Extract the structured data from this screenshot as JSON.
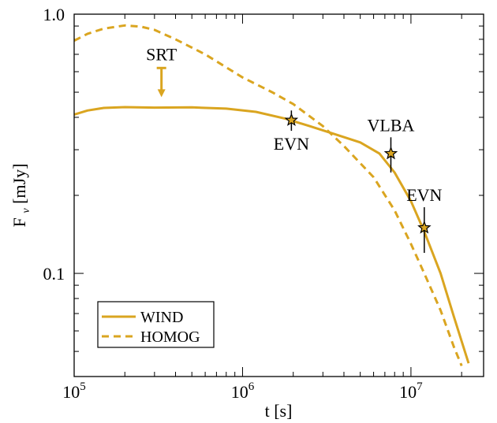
{
  "chart_data": {
    "type": "line",
    "xlabel": "t [s]",
    "ylabel": "Fν [mJy]",
    "xscale": "log",
    "yscale": "log",
    "xlim": [
      100000,
      27000000
    ],
    "ylim": [
      0.04,
      1.0
    ],
    "x_tick_labels": [
      {
        "base": "10",
        "exp": "5",
        "value": 100000
      },
      {
        "base": "10",
        "exp": "6",
        "value": 1000000
      },
      {
        "base": "10",
        "exp": "7",
        "value": 10000000
      }
    ],
    "y_tick_labels": [
      {
        "label": "1.0",
        "value": 1.0
      },
      {
        "label": "0.1",
        "value": 0.1
      }
    ],
    "grid": false,
    "legend_position": "bottom-left",
    "color": "#daa520",
    "series": [
      {
        "name": "WIND",
        "style": "solid",
        "x": [
          100000,
          120000,
          150000,
          200000,
          300000,
          500000,
          800000,
          1200000,
          1800000,
          2500000,
          3500000,
          5000000,
          6500000,
          8000000,
          10000000,
          12000000,
          15000000,
          18000000,
          22000000
        ],
        "y": [
          0.41,
          0.425,
          0.435,
          0.438,
          0.436,
          0.437,
          0.432,
          0.42,
          0.395,
          0.37,
          0.345,
          0.32,
          0.29,
          0.245,
          0.19,
          0.145,
          0.1,
          0.068,
          0.045
        ]
      },
      {
        "name": "HOMOG",
        "style": "dashed",
        "x": [
          100000,
          120000,
          150000,
          200000,
          250000,
          300000,
          400000,
          600000,
          1000000,
          1500000,
          2000000,
          3000000,
          4000000,
          6000000,
          8000000,
          10000000,
          12000000,
          15000000,
          18000000,
          20000000
        ],
        "y": [
          0.79,
          0.84,
          0.88,
          0.905,
          0.895,
          0.87,
          0.8,
          0.7,
          0.57,
          0.5,
          0.45,
          0.37,
          0.31,
          0.235,
          0.175,
          0.13,
          0.1,
          0.072,
          0.052,
          0.044
        ]
      }
    ],
    "detections": [
      {
        "label": "EVN",
        "x": 1950000,
        "y": 0.39,
        "yerr_low": 0.355,
        "yerr_high": 0.425,
        "label_pos": "below"
      },
      {
        "label": "VLBA",
        "x": 7600000,
        "y": 0.29,
        "yerr_low": 0.245,
        "yerr_high": 0.335,
        "label_pos": "above"
      },
      {
        "label": "EVN",
        "x": 12000000,
        "y": 0.15,
        "yerr_low": 0.12,
        "yerr_high": 0.18,
        "label_pos": "above"
      }
    ],
    "upper_limits": [
      {
        "label": "SRT",
        "x": 330000,
        "y": 0.62
      }
    ],
    "legend": [
      {
        "label": "WIND",
        "style": "solid"
      },
      {
        "label": "HOMOG",
        "style": "dashed"
      }
    ]
  }
}
